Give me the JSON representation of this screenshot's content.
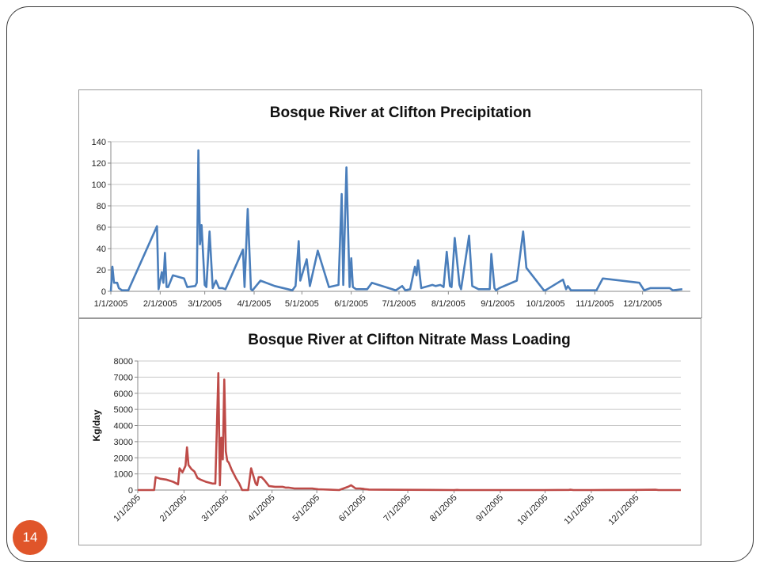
{
  "slide": {
    "page_number": "14",
    "accent_color": "#E0552A"
  },
  "chart_data": [
    {
      "type": "line",
      "title": "Bosque River at Clifton Precipitation",
      "xlabel": "",
      "ylabel": "",
      "color": "#4A7EBB",
      "ylim": [
        0,
        140
      ],
      "yticks": [
        0,
        20,
        40,
        60,
        80,
        100,
        120,
        140
      ],
      "xlim": [
        "2005-01-01",
        "2005-12-31"
      ],
      "xtick_labels": [
        "1/1/2005",
        "2/1/2005",
        "3/1/2005",
        "4/1/2005",
        "5/1/2005",
        "6/1/2005",
        "7/1/2005",
        "8/1/2005",
        "9/1/2005",
        "10/1/2005",
        "11/1/2005",
        "12/1/2005"
      ],
      "xtick_dates": [
        "2005-01-01",
        "2005-02-01",
        "2005-03-01",
        "2005-04-01",
        "2005-05-01",
        "2005-06-01",
        "2005-07-01",
        "2005-08-01",
        "2005-09-01",
        "2005-10-01",
        "2005-11-01",
        "2005-12-01"
      ],
      "grid": true,
      "legend": "none",
      "x": [
        "2005-01-01",
        "2005-01-02",
        "2005-01-03",
        "2005-01-05",
        "2005-01-06",
        "2005-01-08",
        "2005-01-12",
        "2005-01-30",
        "2005-01-31",
        "2005-02-02",
        "2005-02-03",
        "2005-02-04",
        "2005-02-05",
        "2005-02-06",
        "2005-02-09",
        "2005-02-16",
        "2005-02-18",
        "2005-02-23",
        "2005-02-24",
        "2005-02-25",
        "2005-02-26",
        "2005-02-27",
        "2005-03-01",
        "2005-03-02",
        "2005-03-04",
        "2005-03-06",
        "2005-03-08",
        "2005-03-10",
        "2005-03-12",
        "2005-03-14",
        "2005-03-25",
        "2005-03-26",
        "2005-03-28",
        "2005-03-30",
        "2005-03-31",
        "2005-04-05",
        "2005-04-14",
        "2005-04-25",
        "2005-04-27",
        "2005-04-29",
        "2005-04-30",
        "2005-05-04",
        "2005-05-06",
        "2005-05-11",
        "2005-05-18",
        "2005-05-24",
        "2005-05-26",
        "2005-05-27",
        "2005-05-29",
        "2005-05-31",
        "2005-06-01",
        "2005-06-02",
        "2005-06-04",
        "2005-06-11",
        "2005-06-14",
        "2005-06-29",
        "2005-07-03",
        "2005-07-05",
        "2005-07-08",
        "2005-07-11",
        "2005-07-12",
        "2005-07-13",
        "2005-07-15",
        "2005-07-22",
        "2005-07-24",
        "2005-07-27",
        "2005-07-29",
        "2005-07-31",
        "2005-08-02",
        "2005-08-03",
        "2005-08-05",
        "2005-08-08",
        "2005-08-09",
        "2005-08-14",
        "2005-08-16",
        "2005-08-20",
        "2005-08-27",
        "2005-08-28",
        "2005-08-30",
        "2005-08-31",
        "2005-09-02",
        "2005-09-13",
        "2005-09-17",
        "2005-09-19",
        "2005-09-30",
        "2005-10-01",
        "2005-10-12",
        "2005-10-14",
        "2005-10-15",
        "2005-10-17",
        "2005-10-30",
        "2005-11-02",
        "2005-11-06",
        "2005-11-29",
        "2005-12-02",
        "2005-12-06",
        "2005-12-08",
        "2005-12-13",
        "2005-12-16",
        "2005-12-18",
        "2005-12-20",
        "2005-12-26"
      ],
      "values": [
        0,
        23,
        8,
        8,
        3,
        1,
        1,
        61,
        2,
        18,
        8,
        36,
        4,
        4,
        15,
        12,
        4,
        5,
        8,
        132,
        44,
        62,
        6,
        4,
        56,
        3,
        10,
        3,
        3,
        2,
        39,
        4,
        77,
        2,
        1,
        10,
        5,
        1,
        5,
        47,
        10,
        30,
        5,
        38,
        4,
        6,
        91,
        6,
        116,
        4,
        31,
        4,
        2,
        2,
        8,
        1,
        5,
        1,
        2,
        23,
        15,
        29,
        3,
        6,
        5,
        6,
        4,
        37,
        5,
        4,
        50,
        6,
        2,
        52,
        5,
        2,
        2,
        35,
        3,
        1,
        3,
        10,
        56,
        22,
        1,
        1,
        11,
        2,
        5,
        1,
        1,
        1,
        12,
        8,
        1,
        3,
        3,
        3,
        3,
        3,
        1,
        2
      ]
    },
    {
      "type": "line",
      "title": "Bosque River at Clifton Nitrate Mass Loading",
      "xlabel": "",
      "ylabel": "Kg/day",
      "color": "#BE4B48",
      "ylim": [
        0,
        8000
      ],
      "yticks": [
        0,
        1000,
        2000,
        3000,
        4000,
        5000,
        6000,
        7000,
        8000
      ],
      "xlim": [
        "2005-01-01",
        "2005-12-31"
      ],
      "xtick_labels": [
        "1/1/2005",
        "2/1/2005",
        "3/1/2005",
        "4/1/2005",
        "5/1/2005",
        "6/1/2005",
        "7/1/2005",
        "8/1/2005",
        "9/1/2005",
        "10/1/2005",
        "11/1/2005",
        "12/1/2005"
      ],
      "xtick_dates": [
        "2005-01-01",
        "2005-02-01",
        "2005-03-01",
        "2005-04-01",
        "2005-05-01",
        "2005-06-01",
        "2005-07-01",
        "2005-08-01",
        "2005-09-01",
        "2005-10-01",
        "2005-11-01",
        "2005-12-01"
      ],
      "grid": true,
      "legend": "none",
      "x": [
        "2005-01-01",
        "2005-01-12",
        "2005-01-13",
        "2005-01-16",
        "2005-01-20",
        "2005-01-25",
        "2005-01-27",
        "2005-01-28",
        "2005-01-29",
        "2005-01-31",
        "2005-02-02",
        "2005-02-03",
        "2005-02-04",
        "2005-02-06",
        "2005-02-08",
        "2005-02-10",
        "2005-02-12",
        "2005-02-16",
        "2005-02-20",
        "2005-02-22",
        "2005-02-24",
        "2005-02-25",
        "2005-02-26",
        "2005-02-27",
        "2005-02-28",
        "2005-03-01",
        "2005-03-02",
        "2005-03-03",
        "2005-03-05",
        "2005-03-08",
        "2005-03-10",
        "2005-03-12",
        "2005-03-16",
        "2005-03-18",
        "2005-03-21",
        "2005-03-22",
        "2005-03-23",
        "2005-03-25",
        "2005-03-27",
        "2005-03-30",
        "2005-04-03",
        "2005-04-08",
        "2005-04-10",
        "2005-04-12",
        "2005-04-16",
        "2005-04-24",
        "2005-04-26",
        "2005-04-28",
        "2005-05-02",
        "2005-05-10",
        "2005-05-16",
        "2005-05-22",
        "2005-05-24",
        "2005-05-27",
        "2005-05-30",
        "2005-06-01",
        "2005-06-02",
        "2005-06-05",
        "2005-06-15",
        "2005-07-15",
        "2005-08-01",
        "2005-08-03",
        "2005-08-05",
        "2005-09-01",
        "2005-10-01",
        "2005-10-17",
        "2005-10-18",
        "2005-10-20",
        "2005-11-01",
        "2005-12-01",
        "2005-12-14",
        "2005-12-16",
        "2005-12-31"
      ],
      "values": [
        0,
        0,
        800,
        700,
        650,
        500,
        400,
        350,
        1350,
        1100,
        1500,
        2650,
        1550,
        1300,
        1150,
        750,
        650,
        500,
        400,
        400,
        7250,
        300,
        3250,
        1900,
        6850,
        2400,
        1800,
        1700,
        1250,
        700,
        400,
        0,
        0,
        1350,
        400,
        300,
        800,
        800,
        600,
        250,
        200,
        200,
        150,
        150,
        100,
        100,
        100,
        100,
        50,
        20,
        0,
        200,
        300,
        100,
        100,
        80,
        60,
        30,
        20,
        10,
        0,
        10,
        0,
        0,
        0,
        10,
        20,
        0,
        0,
        10,
        20,
        0,
        0
      ]
    }
  ]
}
